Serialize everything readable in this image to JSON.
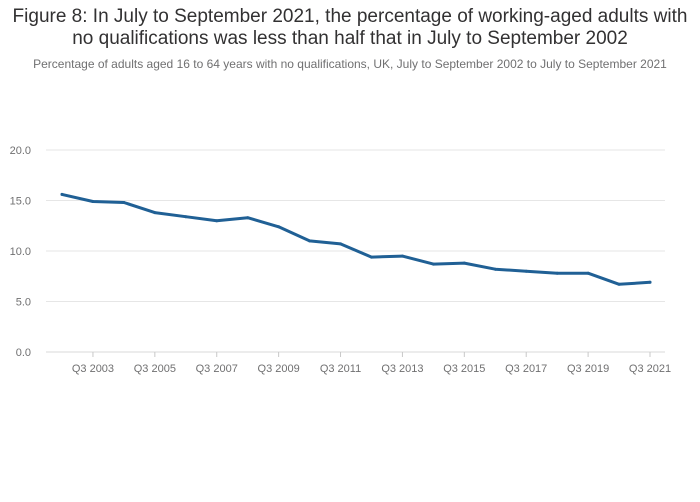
{
  "title": "Figure 8: In July to September 2021, the percentage of working-aged adults with no qualifications was less than half that in July to September 2002",
  "subtitle": "Percentage of adults aged 16 to 64 years with no qualifications, UK, July to September 2002 to July to September 2021",
  "colors": {
    "line": "#206095",
    "grid": "#e6e6e6",
    "text": "#707071"
  },
  "chart_data": {
    "type": "line",
    "title": "Figure 8: In July to September 2021, the percentage of working-aged adults with no qualifications was less than half that in July to September 2002",
    "subtitle": "Percentage of adults aged 16 to 64 years with no qualifications, UK, July to September 2002 to July to September 2021",
    "xlabel": "",
    "ylabel": "",
    "x": [
      "Q3 2002",
      "Q3 2003",
      "Q3 2004",
      "Q3 2005",
      "Q3 2006",
      "Q3 2007",
      "Q3 2008",
      "Q3 2009",
      "Q3 2010",
      "Q3 2011",
      "Q3 2012",
      "Q3 2013",
      "Q3 2014",
      "Q3 2015",
      "Q3 2016",
      "Q3 2017",
      "Q3 2018",
      "Q3 2019",
      "Q3 2020",
      "Q3 2021"
    ],
    "x_tick_labels": [
      "Q3 2003",
      "Q3 2005",
      "Q3 2007",
      "Q3 2009",
      "Q3 2011",
      "Q3 2013",
      "Q3 2015",
      "Q3 2017",
      "Q3 2019",
      "Q3 2021"
    ],
    "series": [
      {
        "values": [
          15.6,
          14.9,
          14.8,
          13.8,
          13.4,
          13.0,
          13.3,
          12.4,
          11.0,
          10.7,
          9.4,
          9.5,
          8.7,
          8.8,
          8.2,
          8.0,
          7.8,
          7.8,
          6.7,
          6.9
        ]
      }
    ],
    "y_ticks": [
      "0.0",
      "5.0",
      "10.0",
      "15.0",
      "20.0"
    ],
    "ylim": [
      0,
      20
    ],
    "grid": true,
    "legend": "none"
  }
}
